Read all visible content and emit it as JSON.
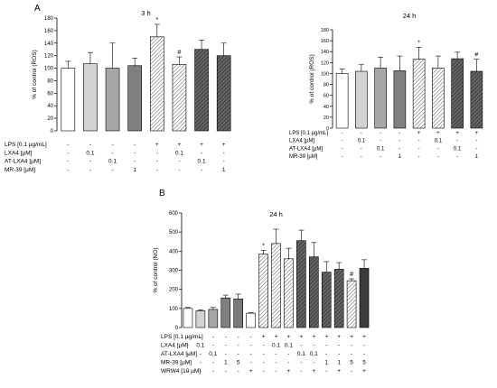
{
  "panels": {
    "a_label": "A",
    "b_label": "B"
  },
  "chart_data": [
    {
      "type": "bar",
      "title": "3 h",
      "ylabel": "% of control (ROS)",
      "ylim": [
        0,
        180
      ],
      "yticks": [
        0,
        20,
        40,
        60,
        80,
        100,
        120,
        140,
        160,
        180
      ],
      "values": [
        100,
        107,
        100,
        104,
        150,
        106,
        130,
        120
      ],
      "errors": [
        11,
        18,
        40,
        12,
        20,
        12,
        15,
        20
      ],
      "annotations": [
        "",
        "",
        "",
        "",
        "*",
        "#",
        "",
        ""
      ],
      "fills": [
        "white",
        "lightgray",
        "gray",
        "dimgray",
        "hatch-light",
        "hatch-light",
        "hatch-dark",
        "hatch-dark"
      ],
      "treatments": [
        {
          "label": "LPS [0.1 µg/mL]",
          "values": [
            "-",
            "-",
            "-",
            "-",
            "+",
            "+",
            "+",
            "+"
          ]
        },
        {
          "label": "LXA4 [µM]",
          "values": [
            "-",
            "0.1",
            "-",
            "-",
            "-",
            "0.1",
            "-",
            "-"
          ]
        },
        {
          "label": "AT-LXA4 [µM]",
          "values": [
            "-",
            "-",
            "0.1",
            "-",
            "-",
            "-",
            "0.1",
            "-"
          ]
        },
        {
          "label": "MR-39 [µM]",
          "values": [
            "-",
            "-",
            "-",
            "1",
            "-",
            "-",
            "-",
            "1"
          ]
        }
      ]
    },
    {
      "type": "bar",
      "title": "24 h",
      "ylabel": "% of control (ROS)",
      "ylim": [
        0,
        180
      ],
      "yticks": [
        0,
        20,
        40,
        60,
        80,
        100,
        120,
        140,
        160,
        180
      ],
      "values": [
        100,
        104,
        110,
        105,
        126,
        110,
        127,
        104
      ],
      "errors": [
        8,
        12,
        20,
        27,
        22,
        22,
        12,
        22
      ],
      "annotations": [
        "",
        "",
        "",
        "",
        "*",
        "",
        "",
        "#"
      ],
      "fills": [
        "white",
        "lightgray",
        "gray",
        "dimgray",
        "hatch-light",
        "hatch-light",
        "hatch-dark",
        "hatch-dark"
      ],
      "treatments": [
        {
          "label": "LPS [0.1 µg/mL]",
          "values": [
            "-",
            "-",
            "-",
            "-",
            "+",
            "+",
            "+",
            "+"
          ]
        },
        {
          "label": "LXA4 [µM]",
          "values": [
            "-",
            "0.1",
            "-",
            "-",
            "-",
            "0.1",
            "-",
            "-"
          ]
        },
        {
          "label": "AT-LXA4 [µM]",
          "values": [
            "-",
            "-",
            "0.1",
            "-",
            "-",
            "-",
            "0.1",
            "-"
          ]
        },
        {
          "label": "MR-39 [µM]",
          "values": [
            "-",
            "-",
            "-",
            "1",
            "-",
            "-",
            "-",
            "1"
          ]
        }
      ]
    },
    {
      "type": "bar",
      "title": "24 h",
      "ylabel": "% of control (NO)",
      "ylim": [
        0,
        600
      ],
      "yticks": [
        0,
        100,
        200,
        300,
        400,
        500,
        600
      ],
      "values": [
        100,
        88,
        95,
        155,
        150,
        75,
        385,
        440,
        360,
        455,
        370,
        290,
        305,
        245,
        310
      ],
      "errors": [
        5,
        5,
        10,
        15,
        25,
        3,
        20,
        75,
        55,
        55,
        75,
        55,
        35,
        10,
        45
      ],
      "annotations": [
        "",
        "",
        "",
        "",
        "",
        "",
        "*",
        "",
        "",
        "",
        "",
        "",
        "",
        "#",
        ""
      ],
      "fills": [
        "white",
        "lightgray",
        "gray",
        "dimgray",
        "darkgray",
        "white",
        "hatch-light",
        "hatch-light",
        "hatch-light",
        "hatch-dark",
        "hatch-dark",
        "hatch-dark",
        "hatch-dark",
        "hatch-light",
        "dark"
      ],
      "treatments": [
        {
          "label": "LPS [0.1 µg/mL]",
          "values": [
            "-",
            "-",
            "-",
            "-",
            "-",
            "-",
            "+",
            "+",
            "+",
            "+",
            "+",
            "+",
            "+",
            "+",
            "+"
          ]
        },
        {
          "label": "LXA4 [µM]",
          "values": [
            "-",
            "0.1",
            "-",
            "-",
            "-",
            "-",
            "-",
            "0.1",
            "0.1",
            "-",
            "-",
            "-",
            "-",
            "-",
            "-"
          ]
        },
        {
          "label": "AT-LXA4 [µM]",
          "values": [
            "-",
            "-",
            "0.1",
            "-",
            "-",
            "-",
            "-",
            "-",
            "-",
            "0.1",
            "0.1",
            "-",
            "-",
            "-",
            "-"
          ]
        },
        {
          "label": "MR-39 [µM]",
          "values": [
            "-",
            "-",
            "-",
            "1",
            "5",
            "-",
            "-",
            "-",
            "-",
            "-",
            "-",
            "1",
            "1",
            "5",
            "5"
          ]
        },
        {
          "label": "WRW4 [10 µM]",
          "values": [
            "-",
            "-",
            "-",
            "-",
            "-",
            "+",
            "-",
            "-",
            "+",
            "-",
            "+",
            "-",
            "+",
            "-",
            "+"
          ]
        }
      ]
    }
  ]
}
